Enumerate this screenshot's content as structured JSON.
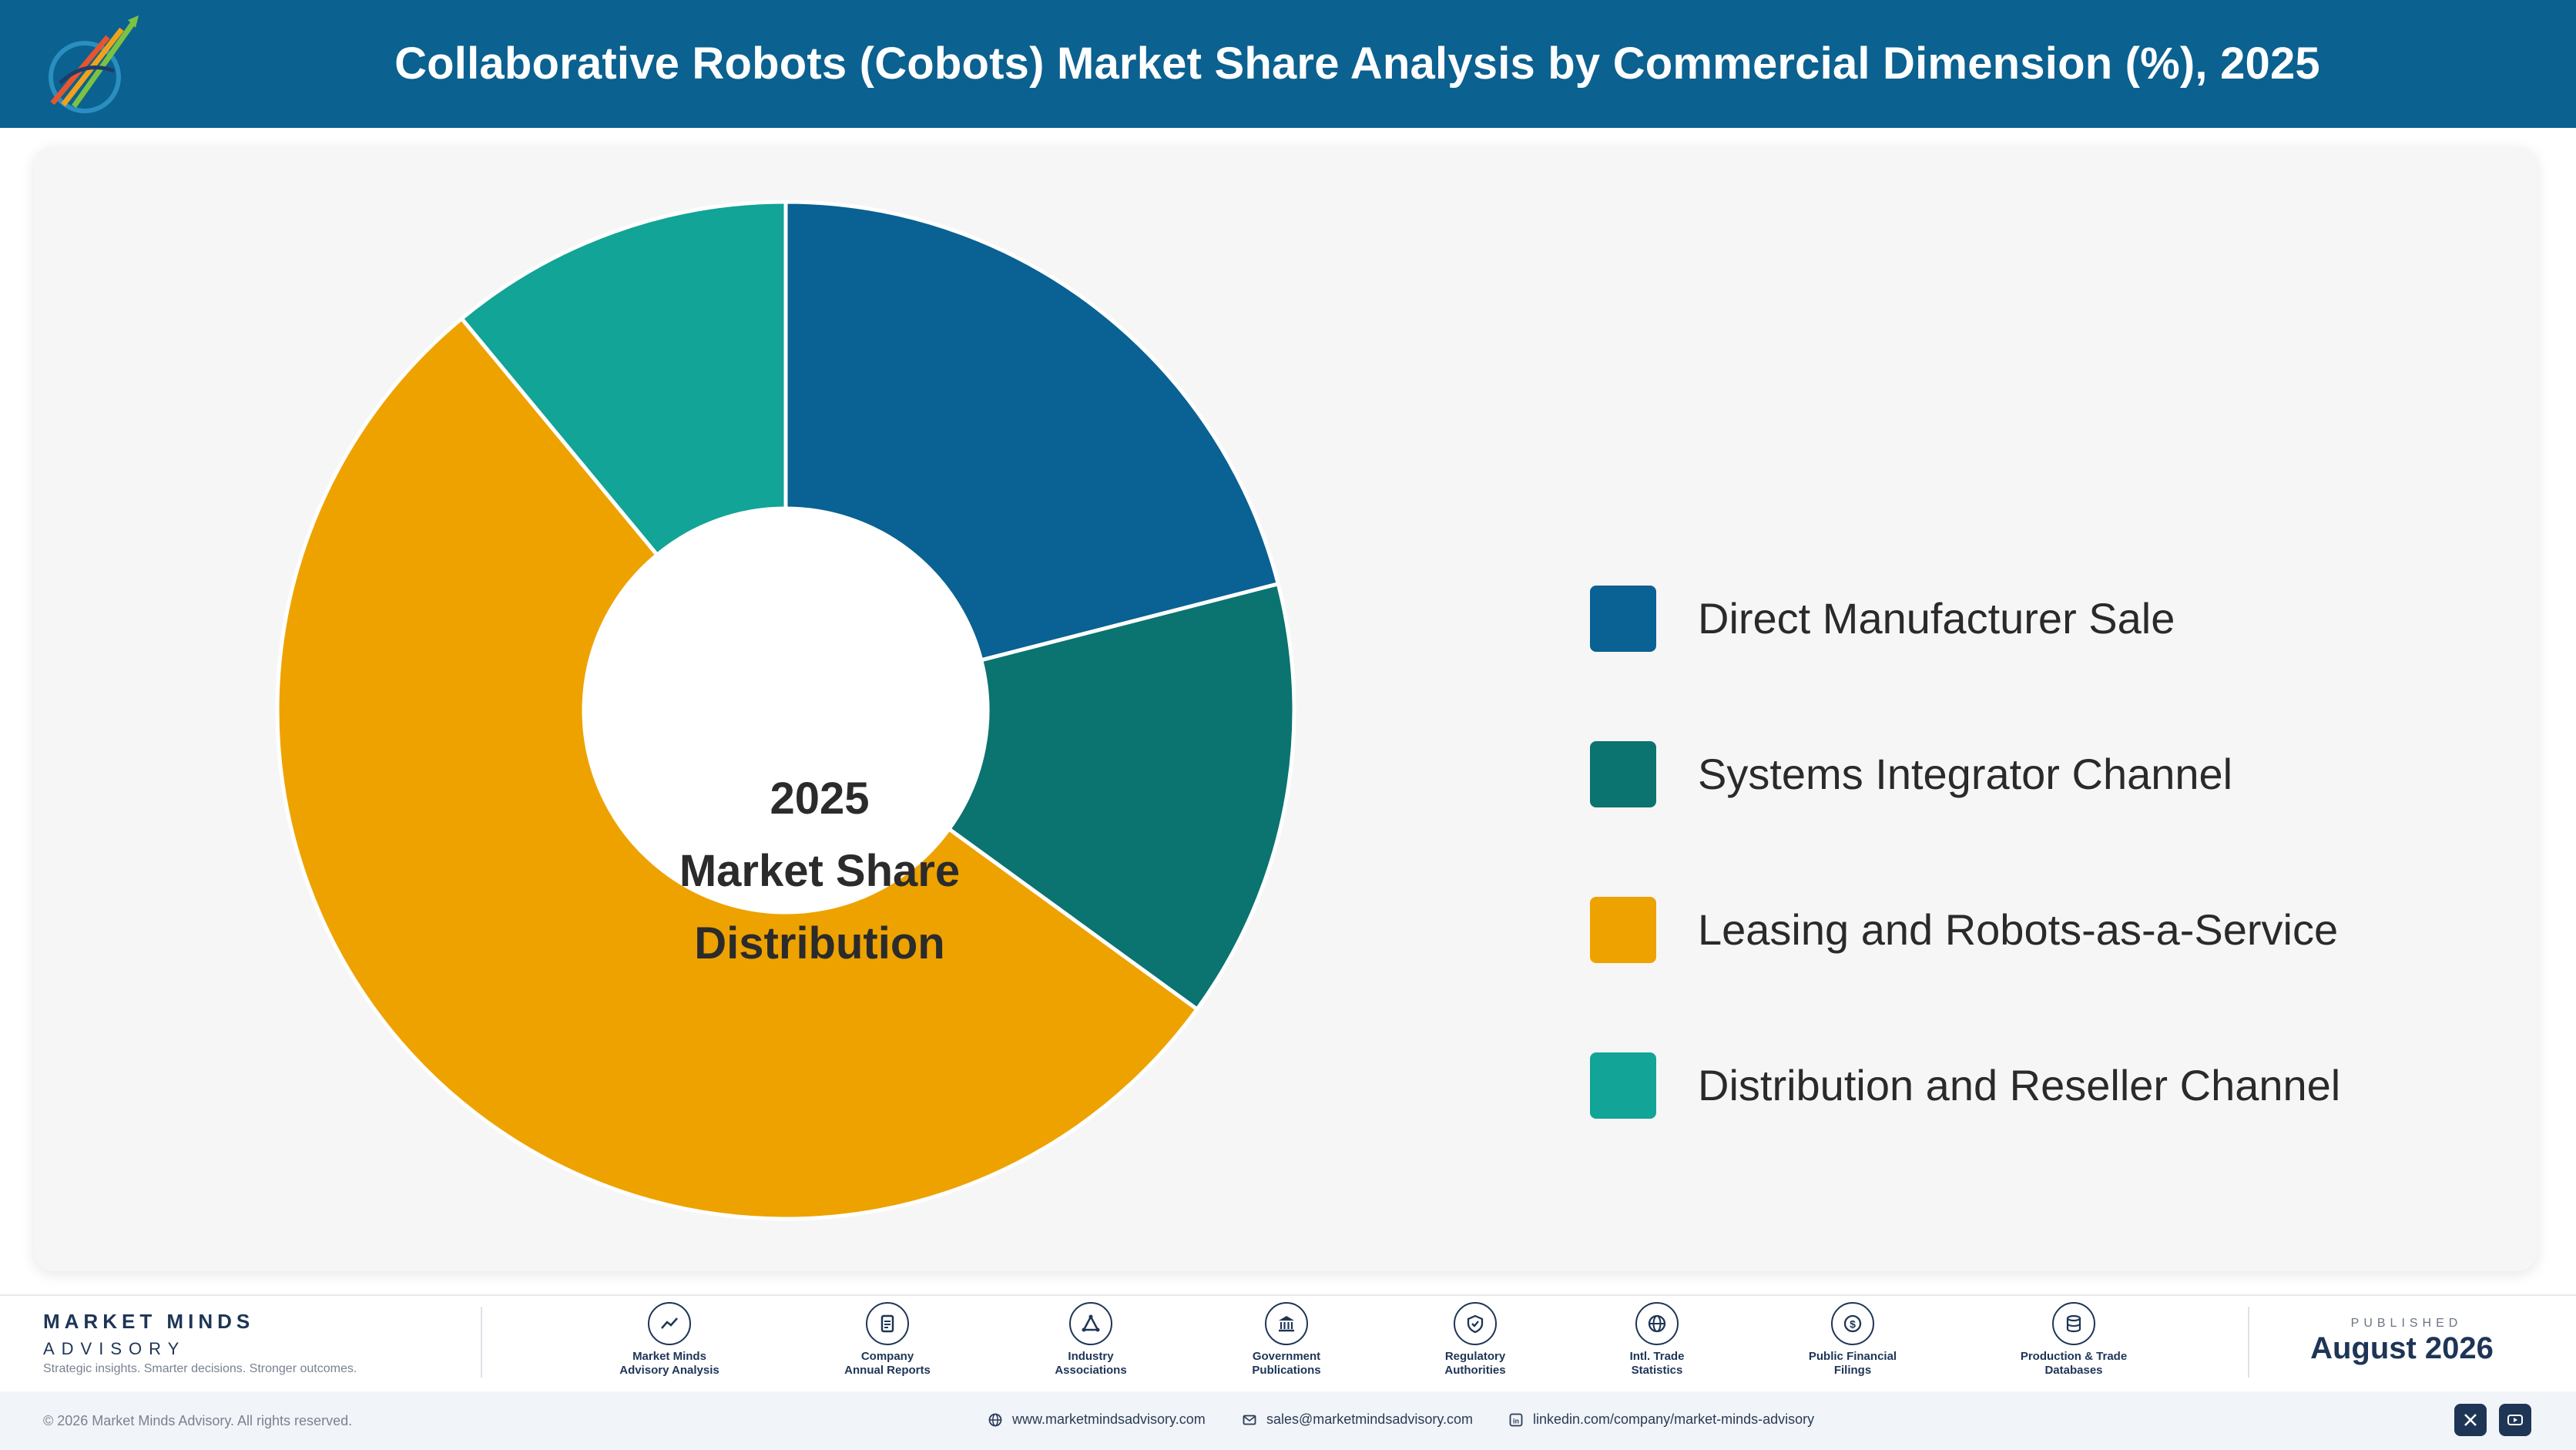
{
  "header": {
    "title": "Collaborative Robots (Cobots) Market Share Analysis by Commercial Dimension (%), 2025"
  },
  "chart_data": {
    "type": "pie",
    "style": "donut",
    "center_label": [
      "2025",
      "Market Share",
      "Distribution"
    ],
    "legend_position": "right",
    "categories": [
      "Direct Manufacturer Sale",
      "Systems Integrator Channel",
      "Leasing and Robots-as-a-Service",
      "Distribution and Reseller Channel"
    ],
    "values": [
      21,
      14,
      54,
      11
    ],
    "colors": [
      "#0a6193",
      "#0b7370",
      "#eea200",
      "#12a496"
    ]
  },
  "footer": {
    "brand_name": "MARKET MINDS",
    "brand_sub": "ADVISORY",
    "tagline": "Strategic insights. Smarter decisions. Stronger outcomes.",
    "sources": [
      {
        "icon": "chart-line-icon",
        "line1": "Market Minds",
        "line2": "Advisory Analysis"
      },
      {
        "icon": "document-icon",
        "line1": "Company",
        "line2": "Annual Reports"
      },
      {
        "icon": "network-icon",
        "line1": "Industry",
        "line2": "Associations"
      },
      {
        "icon": "government-building-icon",
        "line1": "Government",
        "line2": "Publications"
      },
      {
        "icon": "shield-check-icon",
        "line1": "Regulatory",
        "line2": "Authorities"
      },
      {
        "icon": "globe-icon",
        "line1": "Intl. Trade",
        "line2": "Statistics"
      },
      {
        "icon": "dollar-coin-icon",
        "line1": "Public Financial",
        "line2": "Filings"
      },
      {
        "icon": "database-icon",
        "line1": "Production & Trade",
        "line2": "Databases"
      }
    ],
    "published_label": "PUBLISHED",
    "published_date": "August 2026",
    "copyright": "© 2026 Market Minds Advisory. All rights reserved.",
    "website": "www.marketmindsadvisory.com",
    "email": "sales@marketmindsadvisory.com",
    "linkedin": "linkedin.com/company/market-minds-advisory",
    "social": [
      "x-icon",
      "youtube-icon"
    ]
  }
}
